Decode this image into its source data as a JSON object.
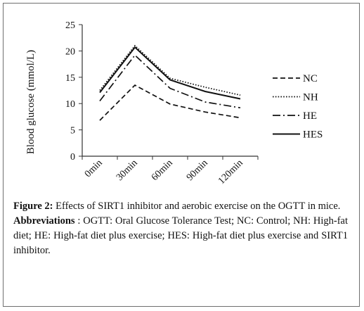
{
  "chart_data": {
    "type": "line",
    "title": "",
    "xlabel": "",
    "ylabel": "Blood glucose (mmol/L)",
    "ylim": [
      0,
      25
    ],
    "yticks": [
      "0",
      "5",
      "10",
      "15",
      "20",
      "25"
    ],
    "categories": [
      "0min",
      "30min",
      "60min",
      "90min",
      "120min"
    ],
    "grid": false,
    "legend_position": "right",
    "series": [
      {
        "name": "NC",
        "style": "dashed",
        "values": [
          6.8,
          13.5,
          9.9,
          8.4,
          7.3
        ]
      },
      {
        "name": "NH",
        "style": "dotted",
        "values": [
          12.5,
          21.0,
          14.8,
          13.1,
          11.6
        ]
      },
      {
        "name": "HE",
        "style": "dash-dot",
        "values": [
          10.5,
          19.2,
          12.9,
          10.3,
          9.2
        ]
      },
      {
        "name": "HES",
        "style": "solid",
        "values": [
          12.1,
          20.7,
          14.5,
          12.3,
          10.9
        ]
      }
    ]
  },
  "caption": {
    "figure_label": "Figure 2:",
    "figure_text": " Effects of SIRT1 inhibitor and aerobic exercise on the OGTT in mice.",
    "abbrev_label": "Abbreviations",
    "abbrev_text": " : OGTT: Oral Glucose Tolerance Test; NC: Control; NH: High-fat diet; HE: High-fat diet plus exercise; HES: High-fat diet plus exercise and SIRT1 inhibitor."
  }
}
